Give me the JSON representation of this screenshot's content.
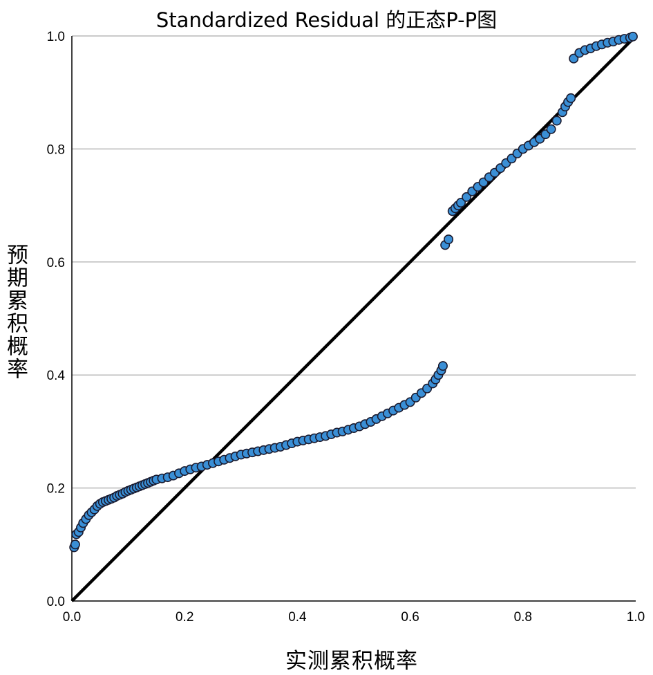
{
  "chart_data": {
    "type": "scatter",
    "title": "Standardized Residual 的正态P-P图",
    "xlabel": "实测累积概率",
    "ylabel": "预期累积概率",
    "xlim": [
      0.0,
      1.0
    ],
    "ylim": [
      0.0,
      1.0
    ],
    "xticks": [
      "0.0",
      "0.2",
      "0.4",
      "0.6",
      "0.8",
      "1.0"
    ],
    "yticks": [
      "0.0",
      "0.2",
      "0.4",
      "0.6",
      "0.8",
      "1.0"
    ],
    "grid": "horizontal",
    "reference_line": {
      "from": [
        0.0,
        0.0
      ],
      "to": [
        1.0,
        1.0
      ]
    },
    "point_color": "#3a8fd6",
    "point_edge_color": "#1a1a2e",
    "line_color": "#000000",
    "series": [
      {
        "x": [
          0.004,
          0.006,
          0.008,
          0.012,
          0.016,
          0.02,
          0.025,
          0.03,
          0.035,
          0.04,
          0.045,
          0.05,
          0.055,
          0.06,
          0.065,
          0.07,
          0.075,
          0.08,
          0.085,
          0.09,
          0.095,
          0.1,
          0.105,
          0.11,
          0.115,
          0.12,
          0.125,
          0.13,
          0.135,
          0.14,
          0.145,
          0.15,
          0.16,
          0.17,
          0.18,
          0.19,
          0.2,
          0.21,
          0.22,
          0.23,
          0.24,
          0.25,
          0.26,
          0.27,
          0.28,
          0.29,
          0.3,
          0.31,
          0.32,
          0.33,
          0.34,
          0.35,
          0.36,
          0.37,
          0.38,
          0.39,
          0.4,
          0.41,
          0.42,
          0.43,
          0.44,
          0.45,
          0.46,
          0.47,
          0.48,
          0.49,
          0.5,
          0.51,
          0.52,
          0.53,
          0.54,
          0.55,
          0.56,
          0.57,
          0.58,
          0.59,
          0.6,
          0.61,
          0.62,
          0.63,
          0.64,
          0.645,
          0.65,
          0.655,
          0.658,
          0.662,
          0.668,
          0.675,
          0.68,
          0.685,
          0.69,
          0.7,
          0.71,
          0.72,
          0.73,
          0.74,
          0.75,
          0.76,
          0.77,
          0.78,
          0.79,
          0.8,
          0.81,
          0.82,
          0.83,
          0.84,
          0.85,
          0.86,
          0.87,
          0.875,
          0.88,
          0.885,
          0.89,
          0.9,
          0.91,
          0.92,
          0.93,
          0.94,
          0.95,
          0.96,
          0.97,
          0.98,
          0.99,
          0.995
        ],
        "y": [
          0.095,
          0.1,
          0.118,
          0.122,
          0.13,
          0.138,
          0.145,
          0.152,
          0.157,
          0.162,
          0.168,
          0.172,
          0.175,
          0.177,
          0.179,
          0.181,
          0.183,
          0.186,
          0.188,
          0.19,
          0.193,
          0.195,
          0.197,
          0.199,
          0.201,
          0.203,
          0.205,
          0.207,
          0.209,
          0.211,
          0.213,
          0.215,
          0.217,
          0.219,
          0.222,
          0.226,
          0.23,
          0.233,
          0.236,
          0.238,
          0.241,
          0.244,
          0.247,
          0.25,
          0.253,
          0.256,
          0.259,
          0.261,
          0.263,
          0.265,
          0.267,
          0.269,
          0.271,
          0.273,
          0.276,
          0.279,
          0.282,
          0.284,
          0.286,
          0.288,
          0.29,
          0.292,
          0.295,
          0.298,
          0.3,
          0.303,
          0.306,
          0.309,
          0.313,
          0.317,
          0.322,
          0.327,
          0.332,
          0.337,
          0.342,
          0.347,
          0.352,
          0.36,
          0.368,
          0.376,
          0.385,
          0.392,
          0.4,
          0.408,
          0.416,
          0.63,
          0.64,
          0.69,
          0.695,
          0.7,
          0.705,
          0.715,
          0.725,
          0.733,
          0.741,
          0.75,
          0.758,
          0.766,
          0.775,
          0.783,
          0.792,
          0.8,
          0.806,
          0.812,
          0.818,
          0.826,
          0.835,
          0.85,
          0.865,
          0.875,
          0.883,
          0.89,
          0.96,
          0.97,
          0.975,
          0.978,
          0.982,
          0.985,
          0.988,
          0.99,
          0.993,
          0.995,
          0.997,
          0.999
        ]
      }
    ]
  }
}
